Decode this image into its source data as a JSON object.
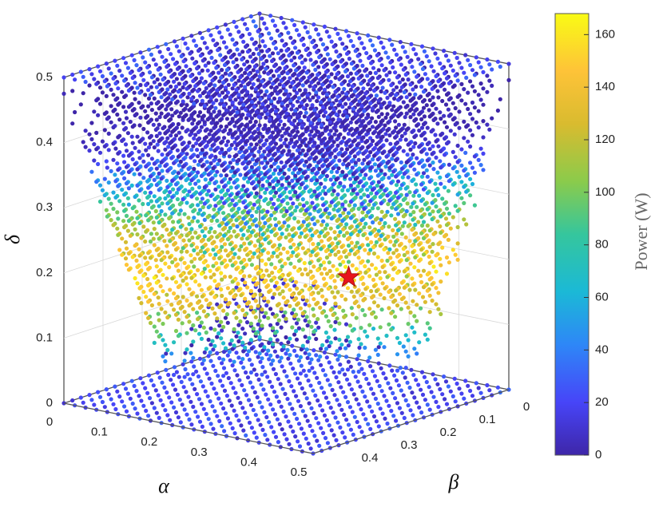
{
  "chart_data": {
    "type": "scatter",
    "projection": "3d",
    "x_axis": {
      "label": "α",
      "range": [
        0,
        0.5
      ],
      "ticks": [
        "0",
        "0.1",
        "0.2",
        "0.3",
        "0.4",
        "0.5"
      ]
    },
    "y_axis": {
      "label": "β",
      "range": [
        0,
        0.5
      ],
      "ticks": [
        "0",
        "0.1",
        "0.2",
        "0.3",
        "0.4"
      ]
    },
    "z_axis": {
      "label": "δ",
      "range": [
        0,
        0.5
      ],
      "ticks": [
        "0",
        "0.1",
        "0.2",
        "0.3",
        "0.4",
        "0.5"
      ]
    },
    "colorbar": {
      "label": "Power (W)",
      "range": [
        0,
        168
      ],
      "ticks": [
        "0",
        "20",
        "40",
        "60",
        "80",
        "100",
        "120",
        "140",
        "160"
      ],
      "colormap": [
        "#3e26a8",
        "#4745f8",
        "#2e87f7",
        "#1bb9d6",
        "#35c69d",
        "#8bcb4b",
        "#d9bb2f",
        "#fec338",
        "#f9fb15"
      ]
    },
    "optimum_marker": {
      "alpha": 0.32,
      "beta": 0.18,
      "delta": 0.18,
      "color": "#e8141c",
      "shape": "star"
    },
    "grid": true
  }
}
